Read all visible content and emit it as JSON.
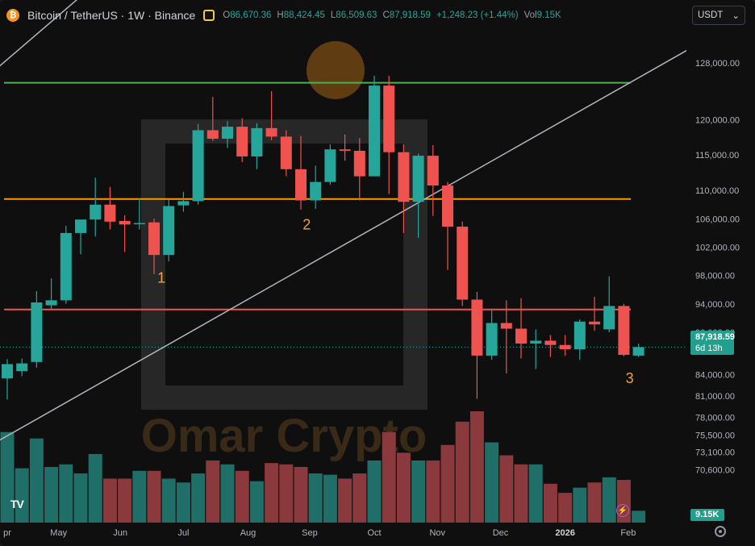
{
  "header": {
    "symbol": "Bitcoin / TetherUS · 1W · Binance",
    "logo_glyph": "₿",
    "open_label": "O",
    "open": "86,670.36",
    "high_label": "H",
    "high": "88,424.45",
    "low_label": "L",
    "low": "86,509.63",
    "close_label": "C",
    "close": "87,918.59",
    "change": "+1,248.23 (+1.44%)",
    "vol_label": "Vol",
    "vol": "9.15K",
    "alert_icon": "alert-icon"
  },
  "currency": {
    "label": "USDT",
    "arrow": "⌄"
  },
  "price_tag": {
    "price": "87,918.59",
    "countdown": "6d 13h"
  },
  "volume_tag": "9.15K",
  "tv_logo": "TV",
  "watermark": {
    "text": "Omar Crypto",
    "logo_glyph": "₿"
  },
  "colors": {
    "up": "#26a69a",
    "down": "#ef5350",
    "up_volume": "#1f6f68",
    "down_volume": "#8a3a3d",
    "green_line": "#4caf50",
    "orange_line": "#ff9800",
    "red_line": "#ef5350",
    "trend_line": "#b2b5be",
    "annotation": "#f2a33a"
  },
  "chart_data": {
    "type": "candlestick",
    "symbol": "BTCUSDT",
    "interval": "1W",
    "y_scale": "linear",
    "ylim": [
      68500,
      132000
    ],
    "y_ticks": [
      128000,
      120000,
      115000,
      110000,
      106000,
      102000,
      98000,
      94000,
      90000,
      84000,
      81000,
      78000,
      75500,
      73100,
      70600
    ],
    "x_ticks": [
      {
        "label": "pr",
        "index": 0
      },
      {
        "label": "May",
        "index": 3.5
      },
      {
        "label": "Jun",
        "index": 7.7
      },
      {
        "label": "Jul",
        "index": 12
      },
      {
        "label": "Aug",
        "index": 16.4
      },
      {
        "label": "Sep",
        "index": 20.6
      },
      {
        "label": "Oct",
        "index": 25
      },
      {
        "label": "Nov",
        "index": 29.3
      },
      {
        "label": "Dec",
        "index": 33.6
      },
      {
        "label": "2026",
        "index": 38
      },
      {
        "label": "Feb",
        "index": 42.3
      }
    ],
    "candles": [
      {
        "o": 83500,
        "h": 86200,
        "l": 80500,
        "c": 85500,
        "v": 70
      },
      {
        "o": 84500,
        "h": 86300,
        "l": 83800,
        "c": 85600,
        "v": 42
      },
      {
        "o": 85800,
        "h": 95800,
        "l": 85000,
        "c": 94200,
        "v": 65
      },
      {
        "o": 93800,
        "h": 97600,
        "l": 93200,
        "c": 94500,
        "v": 43
      },
      {
        "o": 94500,
        "h": 105000,
        "l": 94000,
        "c": 104000,
        "v": 45
      },
      {
        "o": 104000,
        "h": 105700,
        "l": 101000,
        "c": 105900,
        "v": 38
      },
      {
        "o": 105900,
        "h": 111800,
        "l": 103500,
        "c": 108000,
        "v": 53
      },
      {
        "o": 108000,
        "h": 110500,
        "l": 104500,
        "c": 105600,
        "v": 34
      },
      {
        "o": 105700,
        "h": 106500,
        "l": 101300,
        "c": 105200,
        "v": 34
      },
      {
        "o": 105300,
        "h": 108900,
        "l": 104500,
        "c": 105400,
        "v": 40
      },
      {
        "o": 105500,
        "h": 106000,
        "l": 98200,
        "c": 100900,
        "v": 40
      },
      {
        "o": 100900,
        "h": 108800,
        "l": 100000,
        "c": 107800,
        "v": 34
      },
      {
        "o": 107900,
        "h": 109800,
        "l": 107000,
        "c": 108500,
        "v": 31
      },
      {
        "o": 108500,
        "h": 119400,
        "l": 108000,
        "c": 118500,
        "v": 38
      },
      {
        "o": 118500,
        "h": 123200,
        "l": 117000,
        "c": 117300,
        "v": 48
      },
      {
        "o": 117300,
        "h": 119800,
        "l": 116000,
        "c": 119000,
        "v": 45
      },
      {
        "o": 119000,
        "h": 120200,
        "l": 114000,
        "c": 114800,
        "v": 40
      },
      {
        "o": 114800,
        "h": 119500,
        "l": 113000,
        "c": 118800,
        "v": 32
      },
      {
        "o": 118800,
        "h": 124000,
        "l": 117100,
        "c": 117600,
        "v": 46
      },
      {
        "o": 117600,
        "h": 118500,
        "l": 112000,
        "c": 113000,
        "v": 45
      },
      {
        "o": 113000,
        "h": 117700,
        "l": 107300,
        "c": 108600,
        "v": 43
      },
      {
        "o": 108600,
        "h": 113500,
        "l": 107400,
        "c": 111200,
        "v": 38
      },
      {
        "o": 111200,
        "h": 116500,
        "l": 110800,
        "c": 115800,
        "v": 37
      },
      {
        "o": 115800,
        "h": 117900,
        "l": 114200,
        "c": 115600,
        "v": 34
      },
      {
        "o": 115600,
        "h": 117400,
        "l": 108600,
        "c": 112000,
        "v": 38
      },
      {
        "o": 112000,
        "h": 126200,
        "l": 112000,
        "c": 124800,
        "v": 48
      },
      {
        "o": 124800,
        "h": 126200,
        "l": 109500,
        "c": 115400,
        "v": 70
      },
      {
        "o": 115400,
        "h": 116500,
        "l": 104000,
        "c": 108400,
        "v": 54
      },
      {
        "o": 108400,
        "h": 115200,
        "l": 103300,
        "c": 114900,
        "v": 48
      },
      {
        "o": 114900,
        "h": 116400,
        "l": 106400,
        "c": 110700,
        "v": 48
      },
      {
        "o": 110700,
        "h": 111200,
        "l": 98800,
        "c": 104900,
        "v": 60
      },
      {
        "o": 104900,
        "h": 105600,
        "l": 93700,
        "c": 94600,
        "v": 78
      },
      {
        "o": 94600,
        "h": 95700,
        "l": 80600,
        "c": 86700,
        "v": 86
      },
      {
        "o": 86700,
        "h": 93100,
        "l": 86100,
        "c": 91300,
        "v": 62
      },
      {
        "o": 91300,
        "h": 94500,
        "l": 84200,
        "c": 90500,
        "v": 52
      },
      {
        "o": 90500,
        "h": 94800,
        "l": 86300,
        "c": 88400,
        "v": 45
      },
      {
        "o": 88400,
        "h": 90400,
        "l": 84800,
        "c": 88800,
        "v": 45
      },
      {
        "o": 88800,
        "h": 89600,
        "l": 86500,
        "c": 88200,
        "v": 30
      },
      {
        "o": 88200,
        "h": 89600,
        "l": 86700,
        "c": 87600,
        "v": 23
      },
      {
        "o": 87600,
        "h": 91800,
        "l": 86100,
        "c": 91500,
        "v": 27
      },
      {
        "o": 91500,
        "h": 95000,
        "l": 90200,
        "c": 91100,
        "v": 31
      },
      {
        "o": 90400,
        "h": 97900,
        "l": 90000,
        "c": 93700,
        "v": 35
      },
      {
        "o": 93700,
        "h": 94000,
        "l": 86600,
        "c": 86800,
        "v": 33
      },
      {
        "o": 86700,
        "h": 88400,
        "l": 86500,
        "c": 87900,
        "v": 9.15
      }
    ],
    "horizontal_lines": [
      {
        "price": 125200,
        "color": "#4caf50"
      },
      {
        "price": 108800,
        "color": "#ff9800"
      },
      {
        "price": 93200,
        "color": "#ef5350"
      }
    ],
    "trend_lines": [
      {
        "from": {
          "i": -1,
          "p": 74200
        },
        "to": {
          "i": 46.4,
          "p": 129900
        }
      },
      {
        "from": {
          "i": -1,
          "p": 126700
        },
        "to": {
          "i": 7.6,
          "p": 142000
        }
      }
    ],
    "annotations": [
      {
        "text": "1",
        "i": 10.5,
        "p": 97000
      },
      {
        "text": "2",
        "i": 20.4,
        "p": 104500
      },
      {
        "text": "3",
        "i": 42.4,
        "p": 82800
      }
    ]
  }
}
